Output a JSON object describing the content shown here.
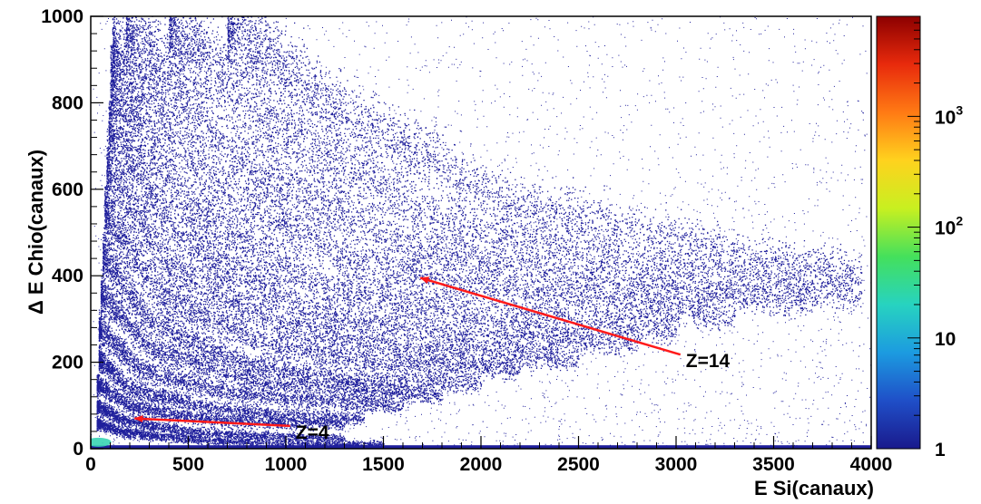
{
  "chart_data": {
    "type": "heatmap",
    "title": "",
    "xlabel": "E Si(canaux)",
    "ylabel": "Δ E Chio(canaux)",
    "xlim": [
      0,
      4000
    ],
    "ylim": [
      0,
      1000
    ],
    "x_ticks": [
      "0",
      "500",
      "1000",
      "1500",
      "2000",
      "2500",
      "3000",
      "3500",
      "4000"
    ],
    "y_ticks": [
      "0",
      "200",
      "400",
      "600",
      "800",
      "1000"
    ],
    "z_scale": "log",
    "zlim": [
      1,
      8000
    ],
    "colorbar_ticks": [
      {
        "value": 1,
        "base": "1",
        "exp": ""
      },
      {
        "value": 10,
        "base": "10",
        "exp": ""
      },
      {
        "value": 100,
        "base": "10",
        "exp": "2"
      },
      {
        "value": 1000,
        "base": "10",
        "exp": "3"
      }
    ],
    "colorbar_colors": [
      "#1a1a8c",
      "#1f4fc8",
      "#1c9be0",
      "#27d3c0",
      "#44e05c",
      "#c8f020",
      "#ffd21e",
      "#ff7a14",
      "#e82a0c",
      "#8c0000"
    ],
    "band_color": "#1f1f9c",
    "hot_spot_color": "#39d4b4",
    "grid": false,
    "bands": [
      {
        "z": 4,
        "points": [
          [
            30,
            60
          ],
          [
            150,
            40
          ],
          [
            500,
            22
          ],
          [
            1000,
            13
          ],
          [
            1500,
            10
          ]
        ]
      },
      {
        "z": 5,
        "points": [
          [
            30,
            100
          ],
          [
            150,
            70
          ],
          [
            500,
            40
          ],
          [
            1000,
            28
          ],
          [
            1300,
            24
          ]
        ]
      },
      {
        "z": 6,
        "points": [
          [
            30,
            150
          ],
          [
            200,
            100
          ],
          [
            600,
            68
          ],
          [
            1000,
            60
          ],
          [
            1300,
            58
          ]
        ]
      },
      {
        "z": 7,
        "points": [
          [
            40,
            210
          ],
          [
            200,
            140
          ],
          [
            600,
            95
          ],
          [
            1000,
            78
          ],
          [
            1400,
            72
          ]
        ]
      },
      {
        "z": 8,
        "points": [
          [
            40,
            280
          ],
          [
            250,
            185
          ],
          [
            700,
            130
          ],
          [
            1200,
            110
          ],
          [
            1600,
            100
          ]
        ]
      },
      {
        "z": 9,
        "points": [
          [
            50,
            360
          ],
          [
            300,
            235
          ],
          [
            800,
            160
          ],
          [
            1300,
            135
          ],
          [
            1800,
            125
          ]
        ]
      },
      {
        "z": 10,
        "points": [
          [
            60,
            450
          ],
          [
            300,
            300
          ],
          [
            800,
            195
          ],
          [
            1400,
            155
          ],
          [
            2000,
            150
          ]
        ]
      },
      {
        "z": 11,
        "points": [
          [
            70,
            550
          ],
          [
            350,
            360
          ],
          [
            900,
            240
          ],
          [
            1500,
            195
          ],
          [
            2200,
            185
          ]
        ]
      },
      {
        "z": 12,
        "points": [
          [
            80,
            650
          ],
          [
            400,
            420
          ],
          [
            1000,
            280
          ],
          [
            1700,
            225
          ],
          [
            2500,
            210
          ]
        ]
      },
      {
        "z": 13,
        "points": [
          [
            90,
            750
          ],
          [
            450,
            490
          ],
          [
            1100,
            320
          ],
          [
            1900,
            260
          ],
          [
            2800,
            245
          ]
        ]
      },
      {
        "z": 14,
        "points": [
          [
            100,
            850
          ],
          [
            500,
            560
          ],
          [
            1200,
            370
          ],
          [
            2100,
            300
          ],
          [
            3000,
            275
          ]
        ]
      },
      {
        "z": 15,
        "points": [
          [
            110,
            930
          ],
          [
            600,
            620
          ],
          [
            1400,
            420
          ],
          [
            2400,
            345
          ],
          [
            3300,
            310
          ]
        ]
      },
      {
        "z": 16,
        "points": [
          [
            180,
            990
          ],
          [
            700,
            690
          ],
          [
            1600,
            470
          ],
          [
            2700,
            375
          ],
          [
            3700,
            340
          ]
        ]
      },
      {
        "z": 17,
        "points": [
          [
            400,
            990
          ],
          [
            900,
            760
          ],
          [
            1800,
            520
          ],
          [
            3000,
            410
          ],
          [
            3950,
            360
          ]
        ]
      },
      {
        "z": 18,
        "points": [
          [
            700,
            990
          ],
          [
            1200,
            800
          ],
          [
            2100,
            580
          ],
          [
            3300,
            450
          ],
          [
            3950,
            410
          ]
        ]
      }
    ],
    "annotations": [
      {
        "text": "Z=4",
        "text_at": [
          1050,
          40
        ],
        "arrow_to": [
          225,
          70
        ],
        "color": "#ff1a1a"
      },
      {
        "text": "Z=14",
        "text_at": [
          3050,
          205
        ],
        "arrow_to": [
          1690,
          395
        ],
        "color": "#ff1a1a"
      }
    ]
  }
}
